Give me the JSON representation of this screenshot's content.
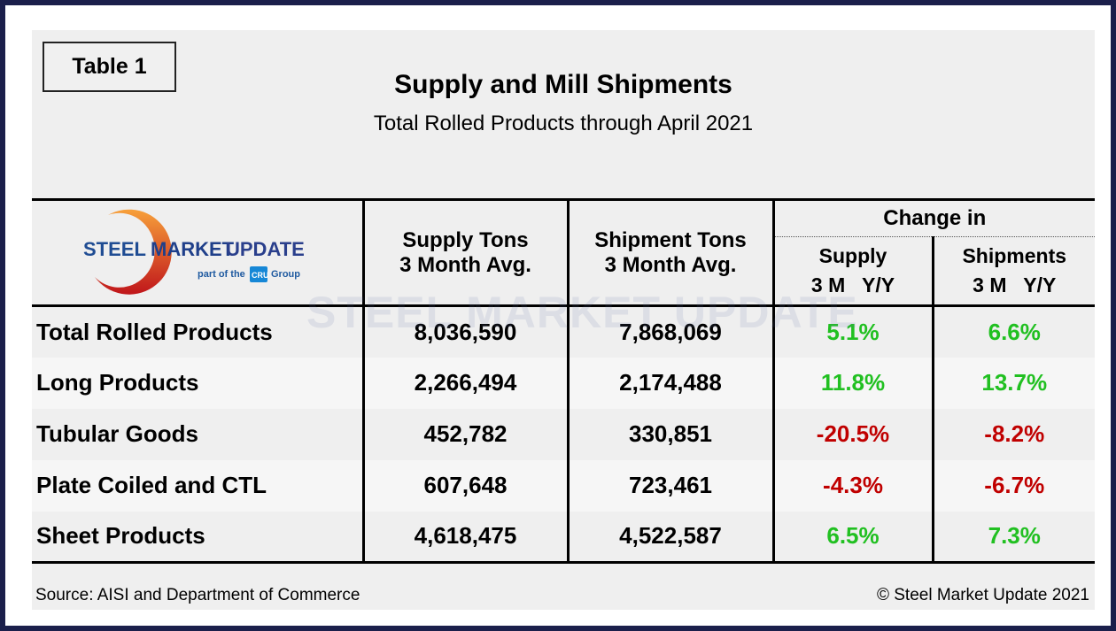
{
  "tag": "Table 1",
  "title": "Supply and Mill Shipments",
  "subtitle": "Total Rolled Products through April 2021",
  "logo": {
    "line1a": "STEEL",
    "line1b": "MARKET",
    "line1c": "UPDATE",
    "line2a": "part of the",
    "badge": "CRU",
    "line2b": "Group"
  },
  "colors": {
    "frame": "#1b1f4b",
    "positive": "#21c021",
    "negative": "#c00000"
  },
  "chart_data": {
    "type": "table",
    "headers": {
      "supply": [
        "Supply Tons",
        "3 Month Avg."
      ],
      "shipment": [
        "Shipment Tons",
        "3 Month Avg."
      ],
      "change": "Change in",
      "change_supply": [
        "Supply",
        "3 M   Y/Y"
      ],
      "change_shipments": [
        "Shipments",
        "3 M   Y/Y"
      ]
    },
    "rows": [
      {
        "name": "Total Rolled Products",
        "supply": "8,036,590",
        "shipment": "7,868,069",
        "supply_chg": "5.1%",
        "ship_chg": "6.6%"
      },
      {
        "name": "Long Products",
        "supply": "2,266,494",
        "shipment": "2,174,488",
        "supply_chg": "11.8%",
        "ship_chg": "13.7%"
      },
      {
        "name": "Tubular Goods",
        "supply": "452,782",
        "shipment": "330,851",
        "supply_chg": "-20.5%",
        "ship_chg": "-8.2%"
      },
      {
        "name": "Plate Coiled and CTL",
        "supply": "607,648",
        "shipment": "723,461",
        "supply_chg": "-4.3%",
        "ship_chg": "-6.7%"
      },
      {
        "name": "Sheet Products",
        "supply": "4,618,475",
        "shipment": "4,522,587",
        "supply_chg": "6.5%",
        "ship_chg": "7.3%"
      }
    ]
  },
  "footer": {
    "source": "Source: AISI and Department of Commerce",
    "copyright": "© Steel Market Update 2021"
  }
}
